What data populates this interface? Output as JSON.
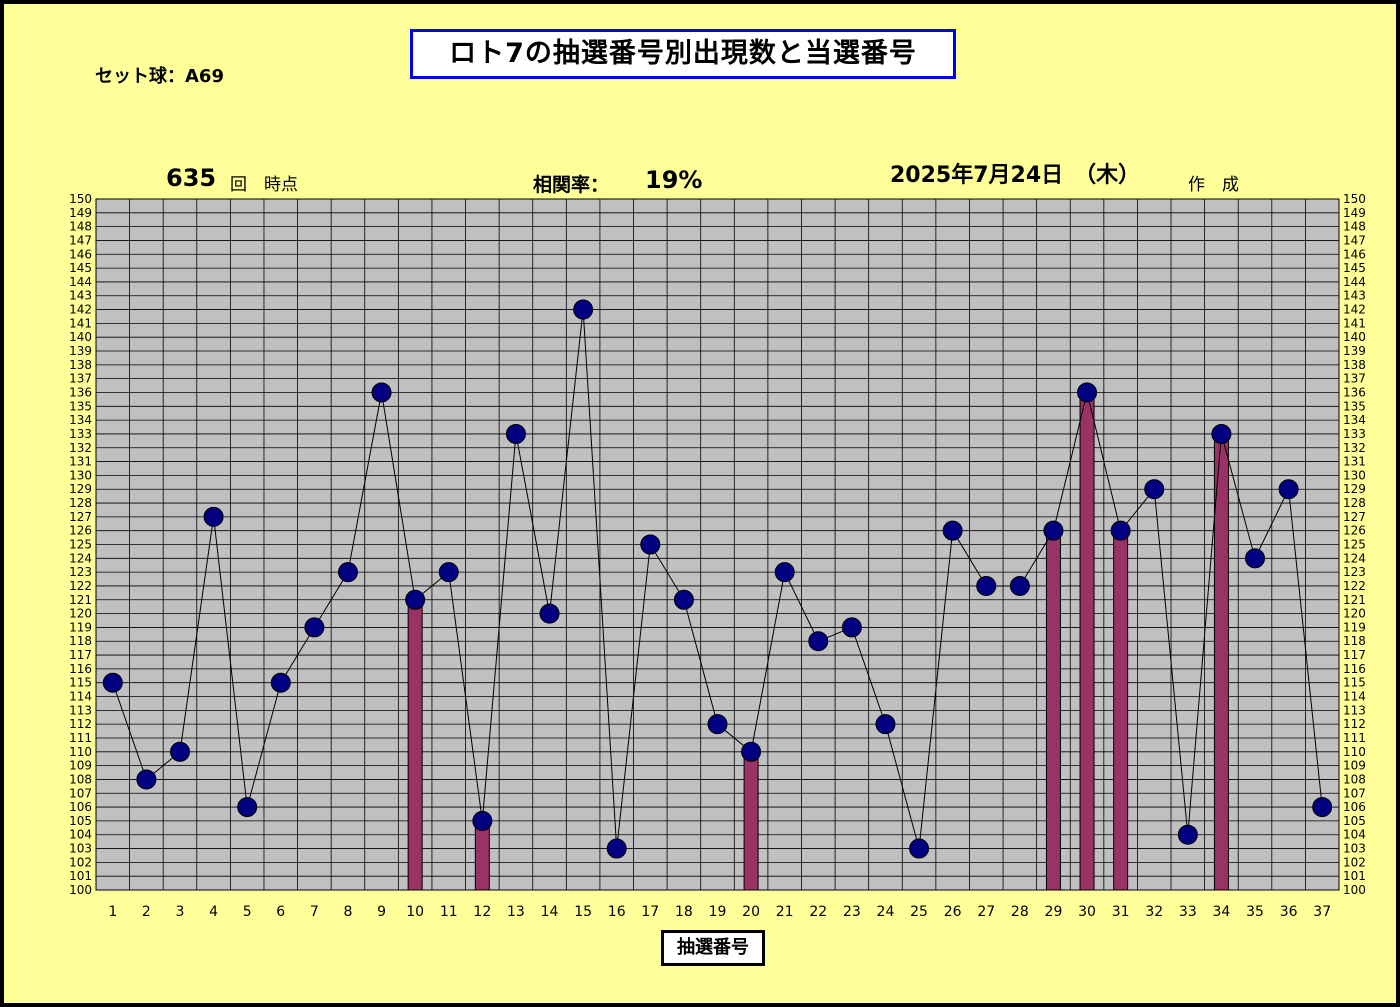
{
  "header": {
    "title": "ロト7の抽選番号別出現数と当選番号",
    "set_ball": "セット球：A69",
    "draw_count": "635",
    "draw_suffix": "回　時点",
    "correlation_label": "相関率：",
    "correlation_value": "19%",
    "date": "2025年7月24日　（木）",
    "made": "作　成"
  },
  "colors": {
    "background": "#FFFF99",
    "plot_area": "#C0C0C0",
    "marker": "#000080",
    "bar": "#993366",
    "title_border": "#0000EE"
  },
  "chart_data": {
    "type": "line",
    "title": "ロト7の抽選番号別出現数と当選番号",
    "xlabel": "抽選番号",
    "ylabel": "",
    "x": [
      1,
      2,
      3,
      4,
      5,
      6,
      7,
      8,
      9,
      10,
      11,
      12,
      13,
      14,
      15,
      16,
      17,
      18,
      19,
      20,
      21,
      22,
      23,
      24,
      25,
      26,
      27,
      28,
      29,
      30,
      31,
      32,
      33,
      34,
      35,
      36,
      37
    ],
    "ylim": [
      100,
      150
    ],
    "y_ticks": [
      100,
      101,
      102,
      103,
      104,
      105,
      106,
      107,
      108,
      109,
      110,
      111,
      112,
      113,
      114,
      115,
      116,
      117,
      118,
      119,
      120,
      121,
      122,
      123,
      124,
      125,
      126,
      127,
      128,
      129,
      130,
      131,
      132,
      133,
      134,
      135,
      136,
      137,
      138,
      139,
      140,
      141,
      142,
      143,
      144,
      145,
      146,
      147,
      148,
      149,
      150
    ],
    "grid": true,
    "series": [
      {
        "type": "line",
        "values": [
          115,
          108,
          110,
          127,
          106,
          115,
          119,
          123,
          136,
          121,
          123,
          105,
          133,
          120,
          142,
          103,
          125,
          121,
          112,
          110,
          123,
          118,
          119,
          112,
          103,
          126,
          122,
          122,
          126,
          136,
          126,
          129,
          104,
          133,
          124,
          129,
          106
        ]
      },
      {
        "type": "bar",
        "x": [
          10,
          12,
          20,
          29,
          30,
          31,
          34
        ],
        "values": [
          121,
          105,
          110,
          126,
          136,
          126,
          133
        ]
      }
    ]
  }
}
